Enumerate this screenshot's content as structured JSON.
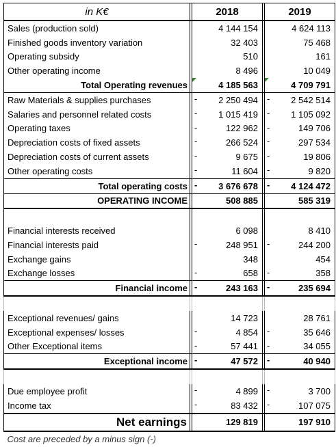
{
  "header": {
    "unit_label": "in K€",
    "years": [
      "2018",
      "2019"
    ]
  },
  "rows": [
    {
      "label": "Sales (production sold)",
      "v2018": "4 144 154",
      "v2019": "4 624 113"
    },
    {
      "label": "Finished goods inventory variation",
      "v2018": "32 403",
      "v2019": "75 468"
    },
    {
      "label": "Operating subsidy",
      "v2018": "510",
      "v2019": "161"
    },
    {
      "label": "Other operating income",
      "v2018": "8 496",
      "v2019": "10 049"
    },
    {
      "label": "Total Operating revenues",
      "v2018": "4 185 563",
      "v2019": "4 709 791"
    },
    {
      "label": "Raw Materials & supplies purchases",
      "v2018": "2 250 494",
      "v2019": "2 542 514"
    },
    {
      "label": "Salaries and personnel related costs",
      "v2018": "1 015 419",
      "v2019": "1 105 092"
    },
    {
      "label": "Operating taxes",
      "v2018": "122 962",
      "v2019": "149 706"
    },
    {
      "label": "Depreciation costs of fixed assets",
      "v2018": "266 524",
      "v2019": "297 534"
    },
    {
      "label": "Depreciation costs of current assets",
      "v2018": "9 675",
      "v2019": "19 806"
    },
    {
      "label": "Other operating costs",
      "v2018": "11 604",
      "v2019": "9 820"
    },
    {
      "label": "Total operating costs",
      "v2018": "3 676 678",
      "v2019": "4 124 472"
    },
    {
      "label": "OPERATING INCOME",
      "v2018": "508 885",
      "v2019": "585 319"
    },
    {
      "label": "Financial interests received",
      "v2018": "6 098",
      "v2019": "8 410"
    },
    {
      "label": "Financial interests paid",
      "v2018": "248 951",
      "v2019": "244 200"
    },
    {
      "label": "Exchange gains",
      "v2018": "348",
      "v2019": "454"
    },
    {
      "label": "Exchange losses",
      "v2018": "658",
      "v2019": "358"
    },
    {
      "label": "Financial income",
      "v2018": "243 163",
      "v2019": "235 694"
    },
    {
      "label": "Exceptional revenues/ gains",
      "v2018": "14 723",
      "v2019": "28 761"
    },
    {
      "label": "Exceptional expenses/ losses",
      "v2018": "4 854",
      "v2019": "35 646"
    },
    {
      "label": "Other Exceptional items",
      "v2018": "57 441",
      "v2019": "34 055"
    },
    {
      "label": "Exceptional income",
      "v2018": "47 572",
      "v2019": "40 940"
    },
    {
      "label": "Due employee profit",
      "v2018": "4 899",
      "v2019": "3 700"
    },
    {
      "label": "Income tax",
      "v2018": "83 432",
      "v2019": "107 075"
    },
    {
      "label": "Net earnings",
      "v2018": "129 819",
      "v2019": "197 910"
    }
  ],
  "minus_sign": "-",
  "footnote": "Cost are preceded by a minus sign (-)"
}
